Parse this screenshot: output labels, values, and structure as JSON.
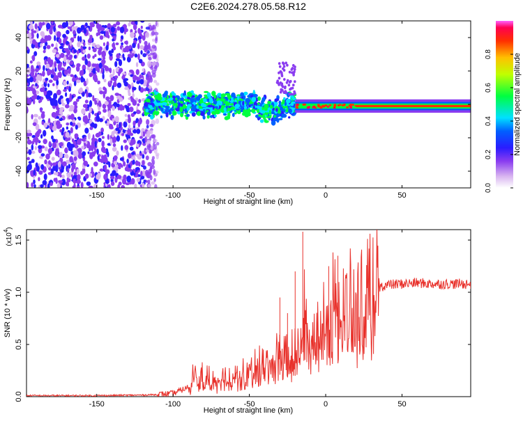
{
  "title": "C2E6.2024.278.05.58.R12",
  "chart_data": [
    {
      "type": "heatmap",
      "xlabel": "Height of straight line (km)",
      "ylabel": "Frequency (Hz)",
      "xlim": [
        -196,
        95
      ],
      "ylim": [
        -50,
        50
      ],
      "xticks": [
        -150,
        -100,
        -50,
        0,
        50
      ],
      "yticks": [
        -40,
        -20,
        0,
        20,
        40
      ],
      "colorbar": {
        "label": "Normalized spectral amplitude",
        "range": [
          0,
          1
        ],
        "ticks": [
          "0.0",
          "0.2",
          "0.4",
          "0.6",
          "0.8"
        ]
      },
      "regions": [
        {
          "x": [
            -196,
            -118
          ],
          "description_value": "broadband noise",
          "amplitude": 0.08
        },
        {
          "x": [
            -118,
            -20
          ],
          "center_freq": 0,
          "width_hz": 6,
          "amplitude": 0.35
        },
        {
          "x": [
            -20,
            95
          ],
          "center_freq": -1,
          "width_hz": 3,
          "amplitude": 0.8
        }
      ]
    },
    {
      "type": "line",
      "xlabel": "Height of straight line (km)",
      "ylabel": "SNR (10 * v/v)",
      "scale_label": "(x10",
      "scale_exp": "4",
      "scale_close": ")",
      "xlim": [
        -196,
        95
      ],
      "ylim": [
        0,
        1.6
      ],
      "xticks": [
        -150,
        -100,
        -50,
        0,
        50
      ],
      "yticks": [
        "0.0",
        "0.5",
        "1.0",
        "1.5"
      ],
      "ytick_values": [
        0,
        0.5,
        1.0,
        1.5
      ],
      "color": "#e8302a",
      "series": [
        {
          "x": [
            -196,
            -150,
            -120,
            -110,
            -100,
            -95,
            -90,
            -88,
            -85,
            -80,
            -70,
            -60,
            -50,
            -45,
            -40,
            -35,
            -30,
            -25,
            -20,
            -18,
            -15,
            -12,
            -10,
            -5,
            0,
            5,
            8,
            10,
            15,
            20,
            25,
            30,
            35,
            40,
            50,
            60,
            70,
            80,
            90,
            95
          ],
          "y": [
            0.01,
            0.01,
            0.015,
            0.02,
            0.03,
            0.06,
            0.09,
            0.17,
            0.2,
            0.18,
            0.16,
            0.2,
            0.22,
            0.3,
            0.3,
            0.33,
            0.42,
            0.4,
            0.4,
            0.5,
            0.85,
            0.6,
            0.6,
            0.62,
            0.7,
            0.9,
            1.0,
            0.75,
            0.88,
            0.9,
            0.95,
            1.0,
            1.05,
            1.07,
            1.08,
            1.09,
            1.08,
            1.08,
            1.08,
            1.08
          ]
        }
      ],
      "spikes": [
        {
          "x": -15,
          "y": 1.58
        },
        {
          "x": -20,
          "y": 1.2
        },
        {
          "x": -25,
          "y": 0.8
        },
        {
          "x": 8,
          "y": 1.35
        },
        {
          "x": 2,
          "y": 1.25
        },
        {
          "x": -30,
          "y": 0.95
        }
      ]
    }
  ]
}
